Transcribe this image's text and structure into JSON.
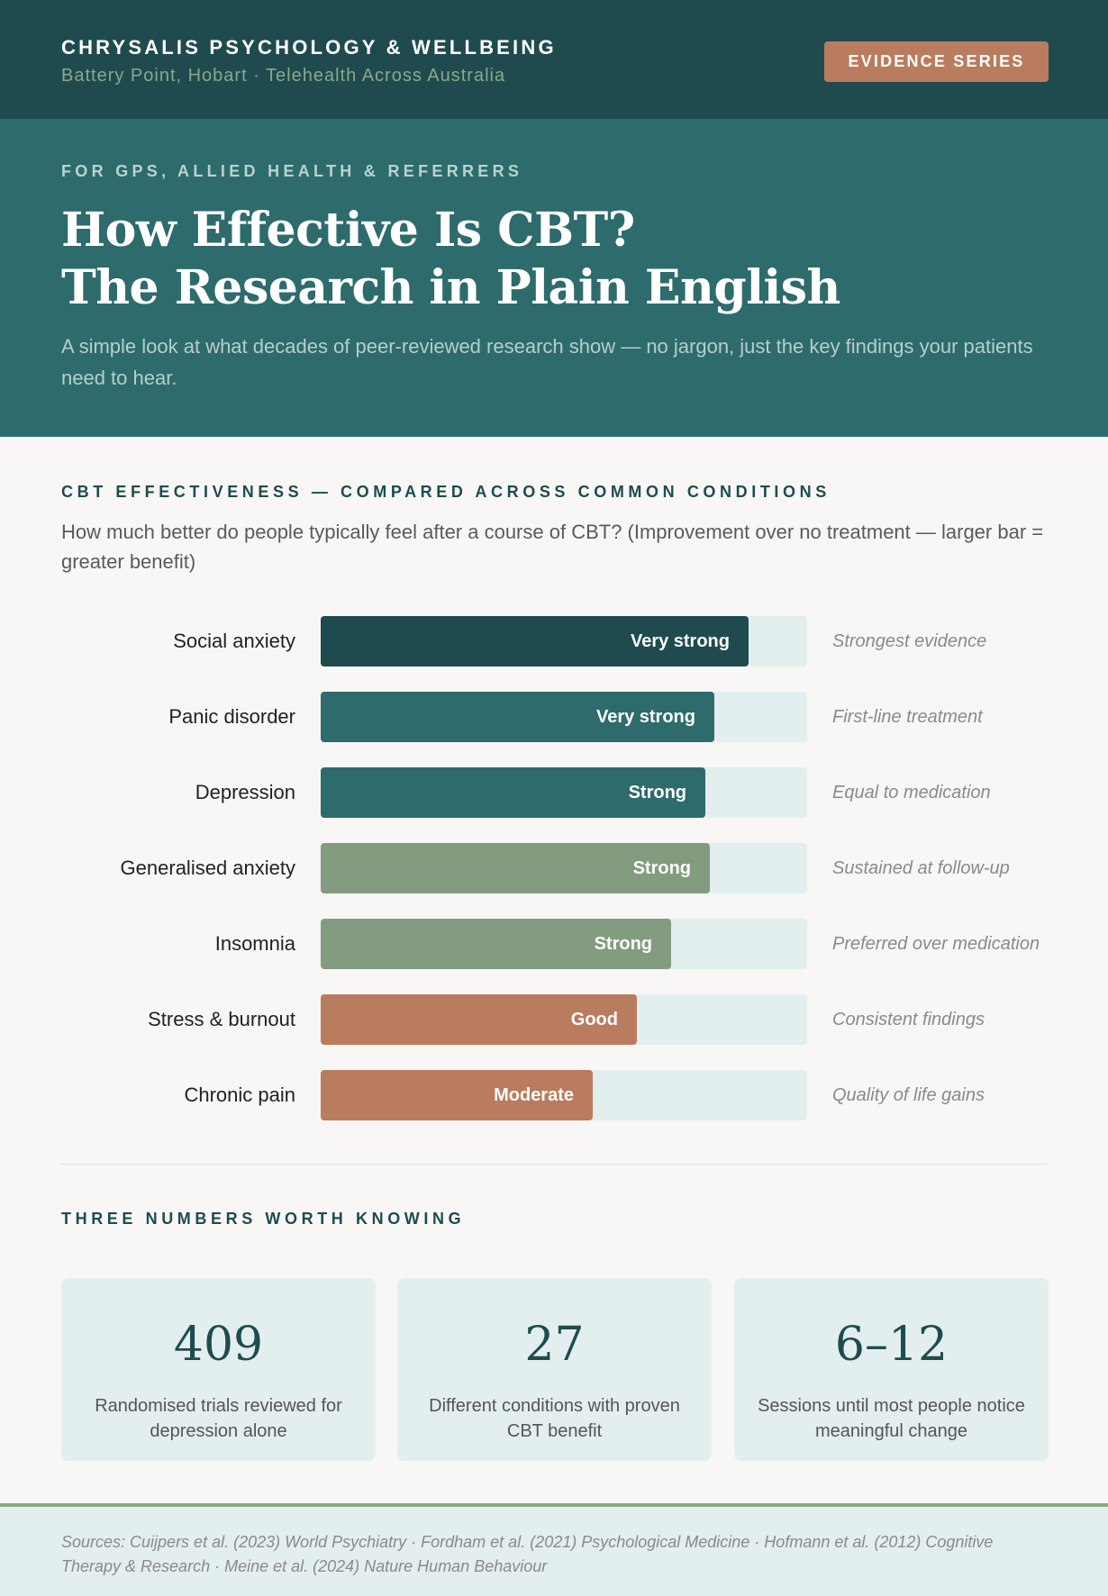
{
  "header": {
    "org_name": "CHRYSALIS PSYCHOLOGY & WELLBEING",
    "location": "Battery Point, Hobart · Telehealth Across Australia",
    "badge": "EVIDENCE SERIES"
  },
  "hero": {
    "eyebrow": "FOR GPS, ALLIED HEALTH & REFERRERS",
    "title_line1": "How Effective Is CBT?",
    "title_line2": "The Research in Plain English",
    "intro": "A simple look at what decades of peer-reviewed research show — no jargon, just the key findings your patients need to hear."
  },
  "chart_section": {
    "heading": "CBT EFFECTIVENESS — COMPARED ACROSS COMMON CONDITIONS",
    "subtitle": "How much better do people typically feel after a course of CBT? (Improvement over no treatment — larger bar = greater benefit)"
  },
  "colors": {
    "dark_teal": "#1f4b4f",
    "teal": "#2e6b6d",
    "sage": "#839c80",
    "terracotta": "#b97c5f",
    "track": "#e2efee"
  },
  "chart_data": {
    "type": "bar",
    "orientation": "horizontal",
    "title": "CBT EFFECTIVENESS — COMPARED ACROSS COMMON CONDITIONS",
    "subtitle": "How much better do people typically feel after a course of CBT? (Improvement over no treatment — larger bar = greater benefit)",
    "xlim": [
      0,
      100
    ],
    "grid": false,
    "categories": [
      "Social anxiety",
      "Panic disorder",
      "Depression",
      "Generalised anxiety",
      "Insomnia",
      "Stress & burnout",
      "Chronic pain"
    ],
    "values": [
      88,
      81,
      79,
      80,
      72,
      65,
      56
    ],
    "bar_labels": [
      "Very strong",
      "Very strong",
      "Strong",
      "Strong",
      "Strong",
      "Good",
      "Moderate"
    ],
    "bar_colors": [
      "#1f4b4f",
      "#2e6b6d",
      "#2e6b6d",
      "#839c80",
      "#839c80",
      "#b97c5f",
      "#b97c5f"
    ],
    "notes": [
      "Strongest evidence",
      "First-line treatment",
      "Equal to medication",
      "Sustained at follow-up",
      "Preferred over medication",
      "Consistent findings",
      "Quality of life gains"
    ]
  },
  "stats": {
    "heading": "THREE NUMBERS WORTH KNOWING",
    "items": [
      {
        "number": "409",
        "text": "Randomised trials reviewed for depression alone"
      },
      {
        "number": "27",
        "text": "Different conditions with proven CBT benefit"
      },
      {
        "number": "6–12",
        "text": "Sessions until most people notice meaningful change"
      }
    ]
  },
  "footer": {
    "sources": "Sources: Cuijpers et al. (2023) World Psychiatry · Fordham et al. (2021) Psychological Medicine · Hofmann et al. (2012) Cognitive Therapy & Research · Meine et al. (2024) Nature Human Behaviour"
  }
}
